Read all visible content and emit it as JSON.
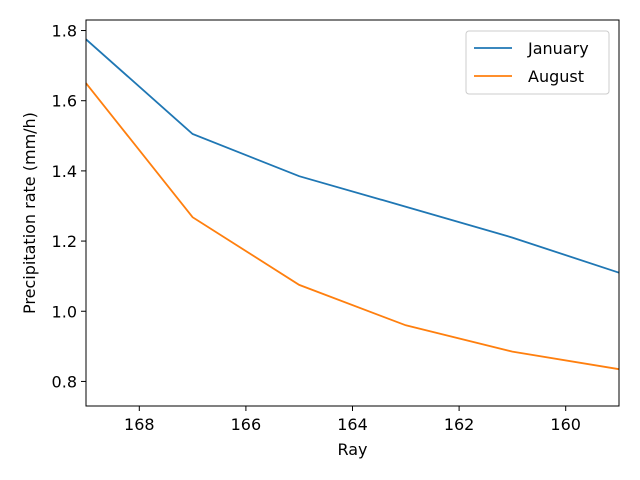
{
  "chart_data": {
    "type": "line",
    "title": "",
    "xlabel": "Ray",
    "ylabel": "Precipitation rate (mm/h)",
    "xlim": [
      169,
      159
    ],
    "ylim": [
      0.73,
      1.83
    ],
    "x_inverted": true,
    "xticks": [
      168,
      166,
      164,
      162,
      160
    ],
    "yticks": [
      0.8,
      1.0,
      1.2,
      1.4,
      1.6,
      1.8
    ],
    "xtick_labels": [
      "168",
      "166",
      "164",
      "162",
      "160"
    ],
    "ytick_labels": [
      "0.8",
      "1.0",
      "1.2",
      "1.4",
      "1.6",
      "1.8"
    ],
    "grid": false,
    "legend_position": "upper right",
    "series": [
      {
        "name": "January",
        "color": "#1f77b4",
        "x": [
          169,
          167,
          165,
          163,
          161,
          159
        ],
        "values": [
          1.775,
          1.505,
          1.385,
          1.298,
          1.21,
          1.11
        ]
      },
      {
        "name": "August",
        "color": "#ff7f0e",
        "x": [
          169,
          167,
          165,
          163,
          161,
          159
        ],
        "values": [
          1.65,
          1.268,
          1.075,
          0.96,
          0.885,
          0.835
        ]
      }
    ]
  }
}
